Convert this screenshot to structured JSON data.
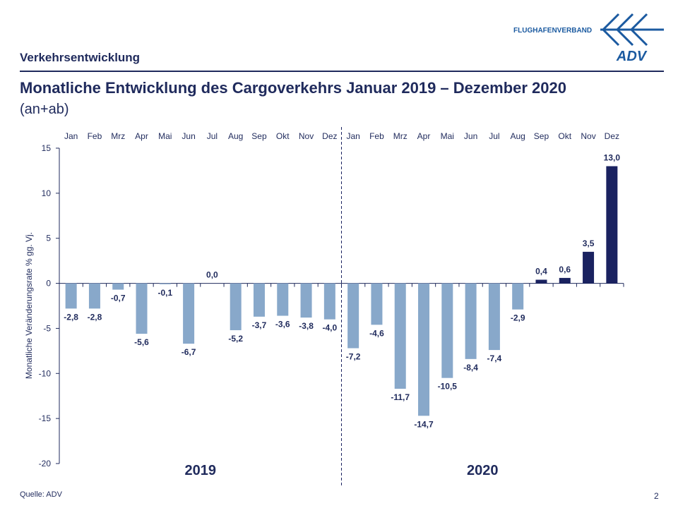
{
  "header": {
    "section": "Verkehrsentwicklung",
    "title": "Monatliche Entwicklung des Cargoverkehrs Januar 2019 – Dezember 2020",
    "subtitle": "(an+ab)",
    "logo_text": "FLUGHAFENVERBAND",
    "logo_mark": "ADV"
  },
  "footer": {
    "source": "Quelle: ADV",
    "page": "2"
  },
  "colors": {
    "bar_light": "#88a8ca",
    "bar_dark": "#1a2260",
    "text": "#1f2a5c"
  },
  "chart_data": {
    "type": "bar",
    "title": "",
    "xlabel": "",
    "ylabel": "Monatliche Veränderungsrate % gg. Vj.",
    "ylim": [
      -20,
      15
    ],
    "yticks": [
      15,
      10,
      5,
      0,
      -5,
      -10,
      -15,
      -20
    ],
    "categories": [
      "Jan",
      "Feb",
      "Mrz",
      "Apr",
      "Mai",
      "Jun",
      "Jul",
      "Aug",
      "Sep",
      "Okt",
      "Nov",
      "Dez",
      "Jan",
      "Feb",
      "Mrz",
      "Apr",
      "Mai",
      "Jun",
      "Jul",
      "Aug",
      "Sep",
      "Okt",
      "Nov",
      "Dez"
    ],
    "groups": [
      "2019",
      "2020"
    ],
    "values": [
      -2.8,
      -2.8,
      -0.7,
      -5.6,
      -0.1,
      -6.7,
      0.0,
      -5.2,
      -3.7,
      -3.6,
      -3.8,
      -4.0,
      -7.2,
      -4.6,
      -11.7,
      -14.7,
      -10.5,
      -8.4,
      -7.4,
      -2.9,
      0.4,
      0.6,
      3.5,
      13.0
    ],
    "labels": [
      "-2,8",
      "-2,8",
      "-0,7",
      "-5,6",
      "-0,1",
      "-6,7",
      "0,0",
      "-5,2",
      "-3,7",
      "-3,6",
      "-3,8",
      "-4,0",
      "-7,2",
      "-4,6",
      "-11,7",
      "-14,7",
      "-10,5",
      "-8,4",
      "-7,4",
      "-2,9",
      "0,4",
      "0,6",
      "3,5",
      "13,0"
    ],
    "grid": false,
    "legend": "none"
  }
}
